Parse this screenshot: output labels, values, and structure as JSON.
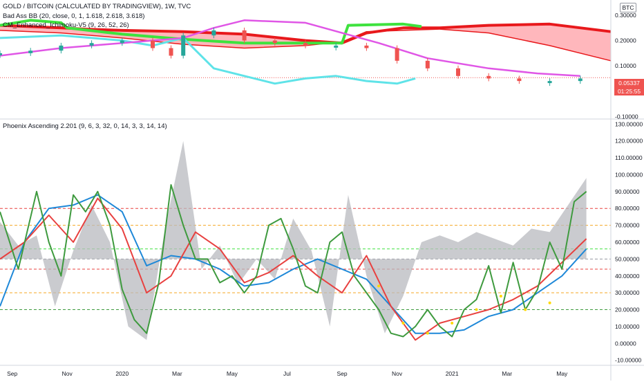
{
  "legends": {
    "main_title": "GOLD / BITCOIN (CALCULATED BY TRADINGVIEW), 1W, TVC",
    "bb": "Bad Ass BB (20, close, 0, 1, 1.618, 2.618, 3.618)",
    "ichimoku": "CM_Enhanced_Ichimoku-V5 (9, 26, 52, 26)",
    "phoenix": "Phoenix Ascending 2.201 (9, 6, 3, 32, 0, 14, 3, 3, 14, 14)"
  },
  "badges": {
    "currency": "BTC",
    "last_price": "0.05337",
    "countdown": "01:25:55"
  },
  "colors": {
    "ichimoku_red": "#e8191c",
    "ichimoku_green": "#3ee23e",
    "cloud_fill": "#ff9fa6",
    "cyan": "#5fe3e8",
    "magenta": "#e056e6",
    "yellow_dots": "#ffd900",
    "phoenix_green": "#3e9a3e",
    "phoenix_red": "#e8403f",
    "phoenix_blue": "#1e88d8",
    "phoenix_gray": "#b8babf",
    "candle_up": "#26a69a",
    "candle_down": "#ef5350",
    "last_price_badge": "#ef5350"
  },
  "chart_data": [
    {
      "type": "line",
      "panel": "price",
      "title": "GOLD / BITCOIN (CALCULATED BY TRADINGVIEW), 1W, TVC",
      "y_ticks": [
        0.3,
        0.2,
        0.1,
        0.0,
        -0.1
      ],
      "y_tick_labels": [
        "0.30000",
        "0.20000",
        "0.10000",
        "0.00000",
        "-0.10000"
      ],
      "ylim": [
        -0.11,
        0.36
      ],
      "xlim": [
        0,
        100
      ],
      "last_value": 0.05337,
      "series": [
        {
          "key": "cloud_top",
          "color": "#e8191c",
          "x": [
            0,
            10,
            14,
            20,
            30,
            40,
            50,
            56,
            60,
            66,
            72,
            80,
            90,
            100
          ],
          "y": [
            0.26,
            0.25,
            0.245,
            0.24,
            0.235,
            0.225,
            0.2,
            0.19,
            0.23,
            0.25,
            0.25,
            0.26,
            0.265,
            0.235
          ]
        },
        {
          "key": "cloud_bottom",
          "color": "#e8191c",
          "x": [
            0,
            10,
            20,
            30,
            40,
            50,
            56,
            60,
            66,
            72,
            80,
            90,
            100
          ],
          "y": [
            0.24,
            0.23,
            0.21,
            0.185,
            0.17,
            0.18,
            0.195,
            0.235,
            0.24,
            0.245,
            0.23,
            0.18,
            0.12
          ]
        },
        {
          "key": "green_line",
          "color": "#3ee23e",
          "x": [
            0,
            5,
            10,
            11,
            20,
            30,
            40,
            56,
            57,
            66,
            69
          ],
          "y": [
            0.26,
            0.28,
            0.27,
            0.25,
            0.225,
            0.205,
            0.19,
            0.19,
            0.26,
            0.265,
            0.255
          ]
        },
        {
          "key": "cyan_line",
          "color": "#5fe3e8",
          "x": [
            0,
            10,
            20,
            25,
            30,
            35,
            40,
            45,
            50,
            55,
            60,
            65,
            68
          ],
          "y": [
            0.21,
            0.22,
            0.2,
            0.18,
            0.21,
            0.09,
            0.06,
            0.03,
            0.05,
            0.06,
            0.04,
            0.03,
            0.05
          ]
        },
        {
          "key": "magenta_line",
          "color": "#e056e6",
          "x": [
            0,
            10,
            20,
            30,
            35,
            40,
            50,
            56,
            62,
            70,
            80,
            88,
            95
          ],
          "y": [
            0.14,
            0.17,
            0.19,
            0.21,
            0.25,
            0.28,
            0.27,
            0.23,
            0.19,
            0.13,
            0.09,
            0.07,
            0.06
          ]
        },
        {
          "key": "candles_close",
          "color": "#ef5350",
          "x": [
            0,
            5,
            10,
            15,
            20,
            25,
            28,
            30,
            35,
            40,
            45,
            50,
            55,
            60,
            65,
            70,
            75,
            80,
            85,
            90,
            95
          ],
          "y": [
            0.15,
            0.16,
            0.18,
            0.19,
            0.2,
            0.17,
            0.14,
            0.22,
            0.24,
            0.2,
            0.19,
            0.18,
            0.18,
            0.17,
            0.12,
            0.09,
            0.06,
            0.05,
            0.04,
            0.04,
            0.05
          ]
        }
      ]
    },
    {
      "type": "line",
      "panel": "oscillator",
      "title": "Phoenix Ascending 2.201 (9, 6, 3, 32, 0, 14, 3, 3, 14, 14)",
      "y_ticks": [
        130,
        120,
        110,
        100,
        90,
        80,
        70,
        60,
        50,
        40,
        30,
        20,
        10,
        0,
        -10
      ],
      "y_tick_labels": [
        "130.00000",
        "120.00000",
        "110.00000",
        "100.00000",
        "90.00000",
        "80.00000",
        "70.00000",
        "60.00000",
        "50.00000",
        "40.00000",
        "30.00000",
        "20.00000",
        "10.00000",
        "0.00000",
        "-10.00000"
      ],
      "ylim": [
        -13,
        133
      ],
      "xlim": [
        0,
        100
      ],
      "hlines": [
        {
          "y": 80,
          "color": "#e8403f"
        },
        {
          "y": 70,
          "color": "#f5a623"
        },
        {
          "y": 56,
          "color": "#3ee23e"
        },
        {
          "y": 50,
          "color": "#9598a1"
        },
        {
          "y": 44,
          "color": "#e8403f"
        },
        {
          "y": 30,
          "color": "#f5a623"
        },
        {
          "y": 20,
          "color": "#3e9a3e"
        }
      ],
      "series": [
        {
          "key": "gray_area",
          "color": "#b8babf",
          "x": [
            0,
            3,
            6,
            9,
            12,
            15,
            18,
            21,
            24,
            27,
            30,
            33,
            36,
            39,
            42,
            45,
            48,
            51,
            54,
            57,
            60,
            63,
            66,
            69,
            72,
            75,
            78,
            81,
            84,
            87,
            90,
            93,
            96
          ],
          "y": [
            72,
            58,
            64,
            22,
            55,
            82,
            60,
            10,
            2,
            68,
            120,
            44,
            58,
            35,
            50,
            38,
            74,
            55,
            10,
            88,
            40,
            6,
            28,
            60,
            64,
            60,
            66,
            62,
            58,
            68,
            66,
            82,
            98
          ]
        },
        {
          "key": "green_line",
          "color": "#3e9a3e",
          "x": [
            0,
            3,
            6,
            8,
            10,
            12,
            14,
            16,
            18,
            20,
            22,
            24,
            26,
            28,
            30,
            32,
            34,
            36,
            38,
            40,
            42,
            44,
            46,
            48,
            50,
            52,
            54,
            56,
            58,
            60,
            62,
            64,
            66,
            68,
            70,
            72,
            74,
            76,
            78,
            80,
            82,
            84,
            86,
            88,
            90,
            92,
            94,
            96
          ],
          "y": [
            78,
            44,
            90,
            60,
            40,
            88,
            78,
            90,
            70,
            32,
            14,
            6,
            36,
            94,
            70,
            50,
            50,
            36,
            40,
            30,
            40,
            70,
            74,
            56,
            34,
            30,
            60,
            66,
            40,
            30,
            20,
            6,
            4,
            10,
            20,
            10,
            4,
            20,
            26,
            46,
            18,
            48,
            20,
            32,
            60,
            44,
            84,
            90
          ]
        },
        {
          "key": "red_line",
          "color": "#e8403f",
          "x": [
            0,
            4,
            8,
            12,
            16,
            20,
            24,
            28,
            32,
            36,
            40,
            44,
            48,
            52,
            56,
            60,
            64,
            68,
            72,
            76,
            80,
            84,
            88,
            92,
            96
          ],
          "y": [
            50,
            60,
            76,
            60,
            86,
            68,
            30,
            40,
            66,
            56,
            36,
            42,
            52,
            40,
            30,
            52,
            22,
            2,
            12,
            16,
            20,
            26,
            34,
            48,
            62
          ]
        },
        {
          "key": "blue_line",
          "color": "#1e88d8",
          "x": [
            0,
            4,
            8,
            12,
            16,
            20,
            24,
            28,
            32,
            36,
            40,
            44,
            48,
            52,
            56,
            60,
            64,
            68,
            72,
            76,
            80,
            84,
            88,
            92,
            96
          ],
          "y": [
            22,
            60,
            80,
            82,
            88,
            78,
            46,
            52,
            50,
            44,
            34,
            36,
            44,
            50,
            44,
            38,
            22,
            6,
            6,
            8,
            16,
            20,
            30,
            40,
            56
          ]
        },
        {
          "key": "yellow_dots",
          "color": "#ffd900",
          "x": [
            62,
            66,
            70,
            74,
            78,
            82,
            86,
            90
          ],
          "y": [
            34,
            12,
            6,
            12,
            20,
            28,
            20,
            24
          ]
        }
      ]
    }
  ],
  "x_axis": {
    "labels": [
      "Sep",
      "Nov",
      "2020",
      "Mar",
      "May",
      "Jul",
      "Sep",
      "Nov",
      "2021",
      "Mar",
      "May"
    ],
    "positions": [
      2,
      11,
      20,
      29,
      38,
      47,
      56,
      65,
      74,
      83,
      92
    ]
  }
}
